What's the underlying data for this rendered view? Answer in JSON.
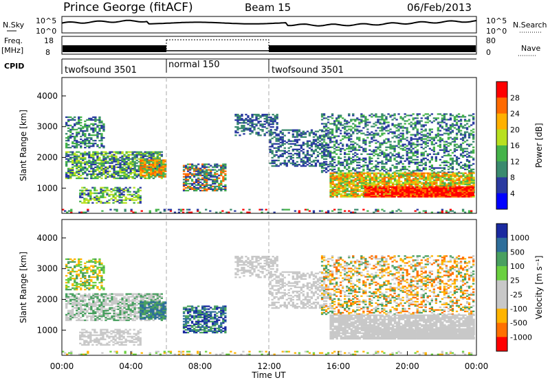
{
  "header": {
    "title": "Prince George (fitACF)",
    "beam": "Beam 15",
    "date": "06/Feb/2013"
  },
  "panels": {
    "nsky_label": "N.Sky",
    "nsearch_label": "N.Search",
    "freq_label": "Freq.",
    "freq_unit": "[MHz]",
    "nave_label": "Nave",
    "cpid_label": "CPID",
    "noise_ticks": [
      "10^5",
      "10^0"
    ],
    "freq_ticks": [
      "18",
      "8"
    ],
    "nave_ticks": [
      "80",
      "0"
    ],
    "cpid_segments": [
      {
        "label": "twofsound 3501",
        "start_h": 0,
        "end_h": 6
      },
      {
        "label": "normal 150",
        "start_h": 6,
        "end_h": 12
      },
      {
        "label": "twofsound 3501",
        "start_h": 12,
        "end_h": 24
      }
    ]
  },
  "chart_data": [
    {
      "type": "heatmap",
      "name": "power",
      "ylabel": "Slant Range [km]",
      "xlabel": "Time UT",
      "ylim": [
        180,
        4600
      ],
      "xlim": [
        0,
        24
      ],
      "yticks": [
        "4000",
        "3000",
        "2000",
        "1000"
      ],
      "xticks": [
        "00:00",
        "04:00",
        "08:00",
        "12:00",
        "16:00",
        "20:00",
        "00:00"
      ],
      "colorbar": {
        "label": "Power [dB]",
        "ticks": [
          "28",
          "24",
          "20",
          "16",
          "12",
          "8",
          "4"
        ],
        "colors": [
          "#ff0000",
          "#ff6a00",
          "#ffb000",
          "#b8e020",
          "#45b34a",
          "#3a8a6e",
          "#2a3aa0",
          "#0000ff"
        ]
      }
    },
    {
      "type": "heatmap",
      "name": "velocity",
      "ylabel": "Slant Range [km]",
      "ylim": [
        180,
        4600
      ],
      "xlim": [
        0,
        24
      ],
      "yticks": [
        "4000",
        "3000",
        "2000",
        "1000"
      ],
      "colorbar": {
        "label": "Velocity [m s^-1]",
        "ticks": [
          "1000",
          "500",
          "100",
          "25",
          "-25",
          "-100",
          "-500",
          "-1000"
        ],
        "colors": [
          "#1a2aa0",
          "#2e6e9a",
          "#49a060",
          "#6ad040",
          "#c8c8c8",
          "#c8c8c8",
          "#ffb400",
          "#ff7000",
          "#ff0000"
        ]
      }
    }
  ],
  "axis_label": "Time UT",
  "power_ylabel": "Slant Range [km]",
  "velocity_ylabel": "Slant Range [km]",
  "power_cbar_label": "Power [dB]",
  "velocity_cbar_label": "Velocity [m s⁻¹]"
}
